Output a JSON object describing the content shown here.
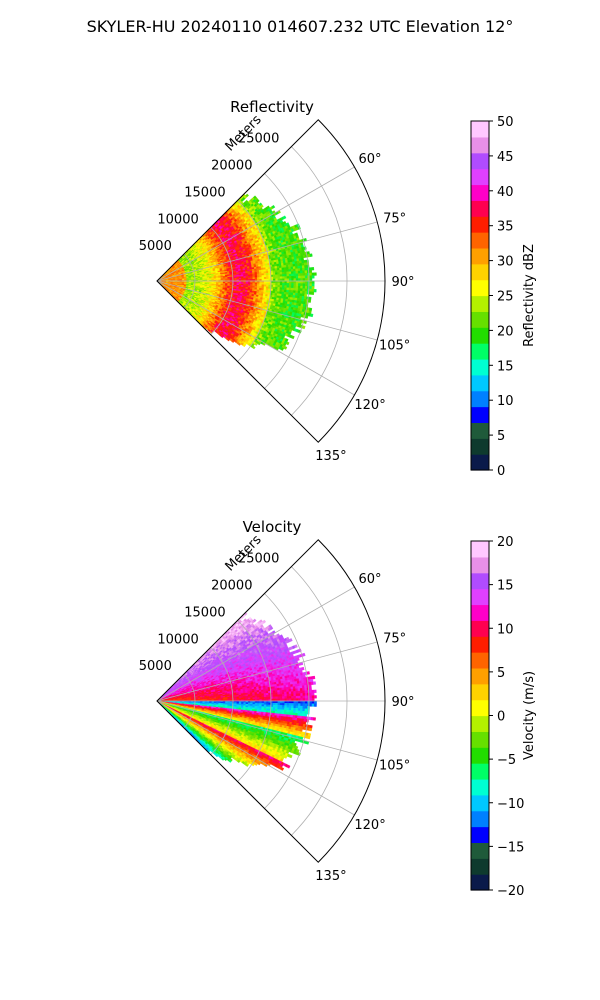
{
  "figure": {
    "title": "SKYLER-HU  20240110  014607.232 UTC Elevation 12°"
  },
  "chart_data": [
    {
      "type": "heatmap",
      "projection": "polar-sector",
      "title": "Reflectivity",
      "radial_axis_label": "Meters",
      "radial_ticks": [
        5000,
        10000,
        15000,
        20000,
        25000
      ],
      "radial_tick_labels": [
        "5000",
        "10000",
        "15000",
        "20000",
        "25000"
      ],
      "radial_range": [
        0,
        30000
      ],
      "azimuth_range_deg": [
        45,
        135
      ],
      "azimuth_ticks": [
        60,
        75,
        90,
        105,
        120,
        135
      ],
      "azimuth_tick_labels": [
        "60°",
        "75°",
        "90°",
        "105°",
        "120°",
        "135°"
      ],
      "data_extent_m": 20000,
      "grid": true,
      "colorbar": {
        "label": "Reflectivity dBZ",
        "range": [
          0,
          50
        ],
        "ticks": [
          0,
          5,
          10,
          15,
          20,
          25,
          30,
          35,
          40,
          45,
          50
        ],
        "tick_labels": [
          "0",
          "5",
          "10",
          "15",
          "20",
          "25",
          "30",
          "35",
          "40",
          "45",
          "50"
        ]
      },
      "field_profile": {
        "description_free": true,
        "max_value_near_m": [
          9000,
          16000
        ],
        "peak_value": 40,
        "outer_value": 20
      }
    },
    {
      "type": "heatmap",
      "projection": "polar-sector",
      "title": "Velocity",
      "radial_axis_label": "Meters",
      "radial_ticks": [
        5000,
        10000,
        15000,
        20000,
        25000
      ],
      "radial_tick_labels": [
        "5000",
        "10000",
        "15000",
        "20000",
        "25000"
      ],
      "radial_range": [
        0,
        30000
      ],
      "azimuth_range_deg": [
        45,
        135
      ],
      "azimuth_ticks": [
        60,
        75,
        90,
        105,
        120,
        135
      ],
      "azimuth_tick_labels": [
        "60°",
        "75°",
        "90°",
        "105°",
        "120°",
        "135°"
      ],
      "data_extent_m": 20000,
      "grid": true,
      "colorbar": {
        "label": "Velocity (m/s)",
        "range": [
          -20,
          20
        ],
        "ticks": [
          -20,
          -15,
          -10,
          -5,
          0,
          5,
          10,
          15,
          20
        ],
        "tick_labels": [
          "−20",
          "−15",
          "−10",
          "−5",
          "0",
          "5",
          "10",
          "15",
          "20"
        ]
      }
    }
  ],
  "colormap": {
    "name": "radar-carbone",
    "stops": [
      "#0a1a4a",
      "#0e3a2e",
      "#1f5a3a",
      "#0000ff",
      "#0080ff",
      "#00c8ff",
      "#00ffd2",
      "#00ff66",
      "#22dd00",
      "#66e000",
      "#b4f000",
      "#ffff00",
      "#ffd200",
      "#ffa000",
      "#ff6400",
      "#ff1e00",
      "#ff0050",
      "#ff00c8",
      "#e040ff",
      "#b04cff",
      "#e890e8",
      "#ffc8ff",
      "#fff0ff"
    ]
  }
}
